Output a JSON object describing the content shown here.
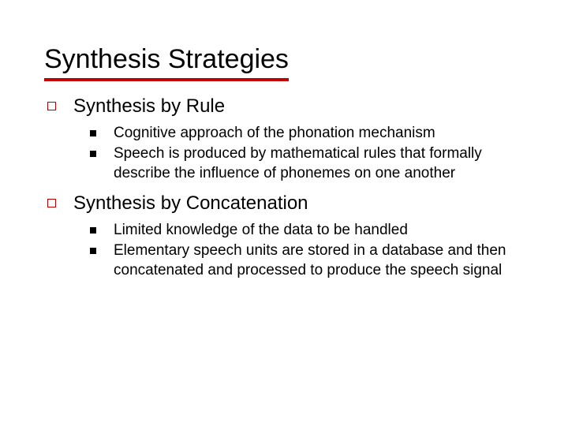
{
  "title": "Synthesis Strategies",
  "colors": {
    "underline": "#c00000",
    "square_bullet_border": "#c00000",
    "filled_bullet": "#000000",
    "text": "#000000",
    "background": "#ffffff"
  },
  "sections": [
    {
      "heading": "Synthesis by Rule",
      "items": [
        "Cognitive approach of the phonation mechanism",
        "Speech is produced by mathematical rules that formally describe the influence of phonemes on one another"
      ]
    },
    {
      "heading": "Synthesis by Concatenation",
      "items": [
        "Limited knowledge of the data to be handled",
        "Elementary speech units are stored in a database and then concatenated and processed to produce the speech signal"
      ]
    }
  ]
}
